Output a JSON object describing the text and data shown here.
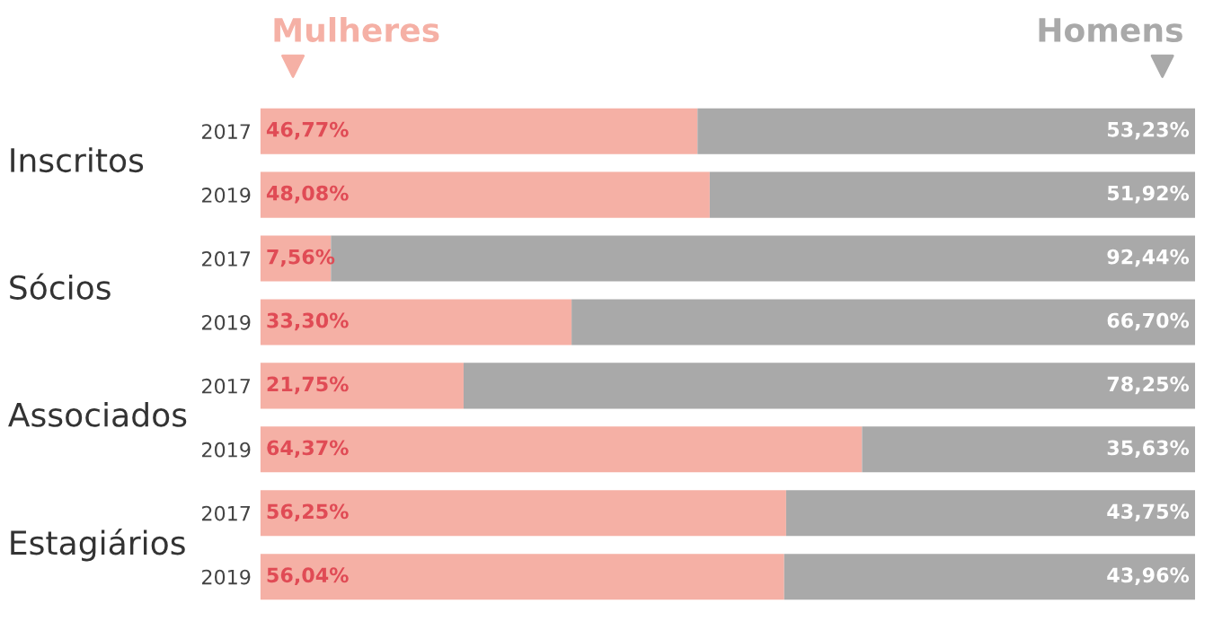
{
  "chart_data": {
    "type": "bar",
    "orientation": "horizontal",
    "stacked": true,
    "categories": [
      "2017",
      "2019",
      "2017",
      "2019",
      "2017",
      "2019",
      "2017",
      "2019"
    ],
    "series": [
      {
        "name": "Mulheres",
        "color": "#f5b0a5",
        "values": [
          46.77,
          48.08,
          7.56,
          33.3,
          21.75,
          64.37,
          56.25,
          56.04
        ],
        "value_labels": [
          "46,77%",
          "48,08%",
          "7,56%",
          "33,30%",
          "21,75%",
          "64,37%",
          "56,25%",
          "56,04%"
        ]
      },
      {
        "name": "Homens",
        "color": "#a9a9a9",
        "values": [
          53.23,
          51.92,
          92.44,
          66.7,
          78.25,
          35.63,
          43.75,
          43.96
        ],
        "value_labels": [
          "53,23%",
          "51,92%",
          "92,44%",
          "66,70%",
          "78,25%",
          "35,63%",
          "43,75%",
          "43,96%"
        ]
      }
    ],
    "xlim": [
      0,
      100
    ],
    "tick_labels": "y",
    "grid": false,
    "legend": "top",
    "annotations": [
      "Inscritos",
      "Sócios",
      "Associados",
      "Estagiários"
    ]
  }
}
